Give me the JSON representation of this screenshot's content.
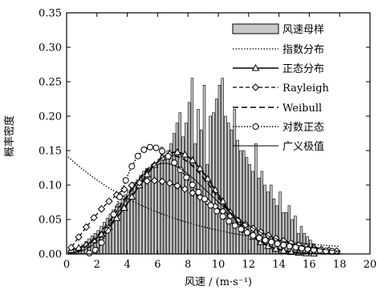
{
  "chart_data": {
    "type": "bar",
    "xlabel": "风速 / (m·s⁻¹)",
    "ylabel": "概率密度",
    "xlim": [
      0,
      20
    ],
    "ylim": [
      0,
      0.35
    ],
    "x_ticks": [
      "0",
      "2",
      "4",
      "6",
      "8",
      "10",
      "12",
      "14",
      "16",
      "18",
      "20"
    ],
    "y_ticks": [
      "0.00",
      "0.05",
      "0.10",
      "0.15",
      "0.20",
      "0.25",
      "0.30",
      "0.35"
    ],
    "grid": false,
    "legend_position": "top-right",
    "histogram": {
      "name": "风速母样",
      "bin_width": 0.2,
      "start": 0.2,
      "values": [
        0.002,
        0.004,
        0.006,
        0.01,
        0.014,
        0.018,
        0.022,
        0.026,
        0.03,
        0.034,
        0.04,
        0.046,
        0.052,
        0.058,
        0.064,
        0.07,
        0.074,
        0.08,
        0.086,
        0.092,
        0.098,
        0.104,
        0.108,
        0.114,
        0.12,
        0.124,
        0.126,
        0.13,
        0.128,
        0.134,
        0.155,
        0.14,
        0.15,
        0.16,
        0.175,
        0.19,
        0.205,
        0.17,
        0.19,
        0.22,
        0.255,
        0.16,
        0.21,
        0.18,
        0.245,
        0.13,
        0.2,
        0.205,
        0.225,
        0.245,
        0.255,
        0.2,
        0.19,
        0.18,
        0.21,
        0.165,
        0.15,
        0.15,
        0.14,
        0.13,
        0.12,
        0.16,
        0.11,
        0.12,
        0.1,
        0.09,
        0.1,
        0.08,
        0.07,
        0.09,
        0.06,
        0.06,
        0.07,
        0.05,
        0.055,
        0.03,
        0.04,
        0.03,
        0.025,
        0.02,
        0.015,
        0.01,
        0.008,
        0.006,
        0.005,
        0.004,
        0.003,
        0.002
      ]
    },
    "series": [
      {
        "name": "指数分布",
        "style": "dotted",
        "fn": "exp",
        "params": {
          "mean": 7.0
        }
      },
      {
        "name": "正态分布",
        "style": "solid-triangle",
        "fn": "normal",
        "params": {
          "mu": 7.2,
          "sigma": 2.7
        }
      },
      {
        "name": "Rayleigh",
        "style": "dash-diamond",
        "fn": "rayleigh",
        "params": {
          "sigma": 5.7
        }
      },
      {
        "name": "Weibull",
        "style": "dashed",
        "fn": "weibull",
        "params": {
          "k": 2.9,
          "lambda": 8.0
        }
      },
      {
        "name": "对数正态",
        "style": "dotted-circle",
        "fn": "lognormal",
        "params": {
          "mu": 1.9,
          "sigma": 0.42
        }
      },
      {
        "name": "广义极值",
        "style": "thin-solid",
        "fn": "gev",
        "params": {
          "mu": 6.3,
          "sigma": 2.8,
          "xi": -0.05
        }
      }
    ]
  }
}
